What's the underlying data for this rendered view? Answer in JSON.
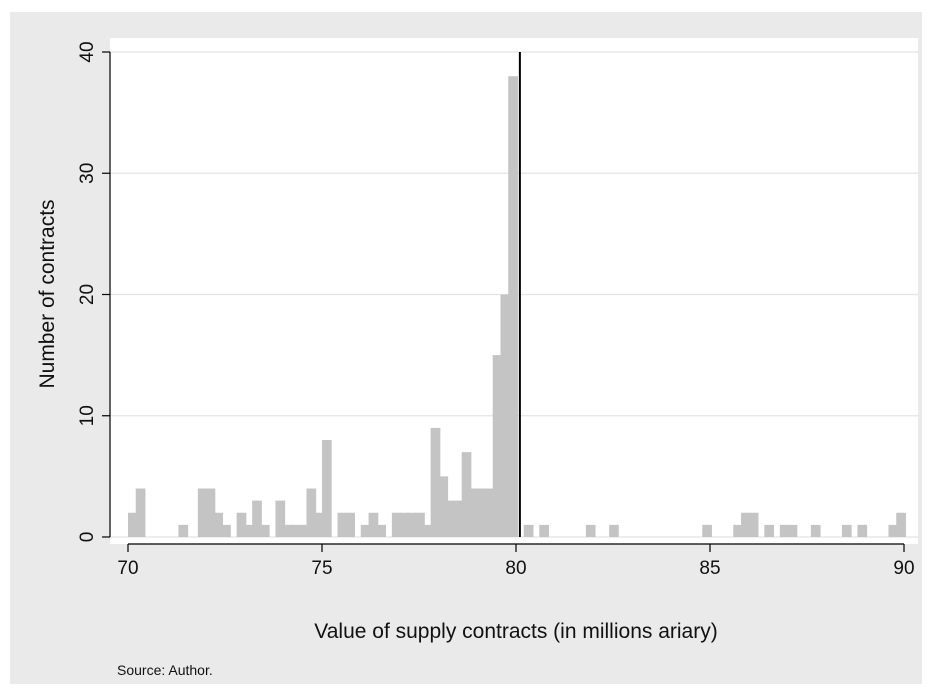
{
  "chart_data": {
    "type": "bar",
    "xlabel": "Value of supply contracts (in millions ariary)",
    "ylabel": "Number of contracts",
    "note": "Source: Author.",
    "xlim": [
      70,
      90.2
    ],
    "ylim": [
      0,
      40
    ],
    "xticks": [
      70,
      75,
      80,
      85,
      90
    ],
    "yticks": [
      0,
      10,
      20,
      30,
      40
    ],
    "bin_width": 0.25,
    "grid": true,
    "bar_color": "#c4c4c4",
    "threshold_line": {
      "x": 80.1,
      "color": "#000000"
    },
    "bins": [
      {
        "x": 70.0,
        "count": 2
      },
      {
        "x": 70.2,
        "count": 4
      },
      {
        "x": 71.3,
        "count": 1
      },
      {
        "x": 71.8,
        "count": 4
      },
      {
        "x": 72.0,
        "count": 4
      },
      {
        "x": 72.2,
        "count": 2
      },
      {
        "x": 72.4,
        "count": 1
      },
      {
        "x": 72.8,
        "count": 2
      },
      {
        "x": 73.0,
        "count": 1
      },
      {
        "x": 73.2,
        "count": 3
      },
      {
        "x": 73.4,
        "count": 1
      },
      {
        "x": 73.8,
        "count": 3
      },
      {
        "x": 74.0,
        "count": 1
      },
      {
        "x": 74.2,
        "count": 1
      },
      {
        "x": 74.4,
        "count": 1
      },
      {
        "x": 74.6,
        "count": 4
      },
      {
        "x": 74.8,
        "count": 2
      },
      {
        "x": 75.0,
        "count": 8
      },
      {
        "x": 75.4,
        "count": 2
      },
      {
        "x": 75.6,
        "count": 2
      },
      {
        "x": 76.0,
        "count": 1
      },
      {
        "x": 76.2,
        "count": 2
      },
      {
        "x": 76.4,
        "count": 1
      },
      {
        "x": 76.8,
        "count": 2
      },
      {
        "x": 77.0,
        "count": 2
      },
      {
        "x": 77.2,
        "count": 2
      },
      {
        "x": 77.4,
        "count": 2
      },
      {
        "x": 77.6,
        "count": 1
      },
      {
        "x": 77.8,
        "count": 9
      },
      {
        "x": 78.0,
        "count": 5
      },
      {
        "x": 78.2,
        "count": 3
      },
      {
        "x": 78.4,
        "count": 3
      },
      {
        "x": 78.6,
        "count": 7
      },
      {
        "x": 78.8,
        "count": 4
      },
      {
        "x": 79.0,
        "count": 4
      },
      {
        "x": 79.2,
        "count": 4
      },
      {
        "x": 79.4,
        "count": 15
      },
      {
        "x": 79.6,
        "count": 20
      },
      {
        "x": 79.8,
        "count": 38
      },
      {
        "x": 80.2,
        "count": 1
      },
      {
        "x": 80.6,
        "count": 1
      },
      {
        "x": 81.8,
        "count": 1
      },
      {
        "x": 82.4,
        "count": 1
      },
      {
        "x": 84.8,
        "count": 1
      },
      {
        "x": 85.6,
        "count": 1
      },
      {
        "x": 85.8,
        "count": 2
      },
      {
        "x": 86.0,
        "count": 2
      },
      {
        "x": 86.4,
        "count": 1
      },
      {
        "x": 86.8,
        "count": 1
      },
      {
        "x": 87.0,
        "count": 1
      },
      {
        "x": 87.6,
        "count": 1
      },
      {
        "x": 88.4,
        "count": 1
      },
      {
        "x": 88.8,
        "count": 1
      },
      {
        "x": 89.6,
        "count": 1
      },
      {
        "x": 89.8,
        "count": 2
      }
    ]
  }
}
